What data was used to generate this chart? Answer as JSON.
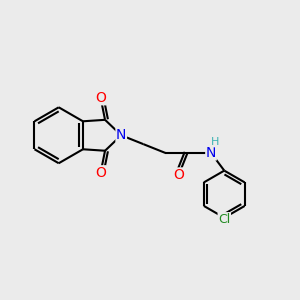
{
  "background_color": "#ebebeb",
  "bond_color": "#000000",
  "bond_width": 1.5,
  "atom_colors": {
    "O": "#ff0000",
    "N": "#0000ee",
    "H": "#3cb3b3",
    "Cl": "#228b22",
    "C": "#000000"
  },
  "font_size_atom": 9,
  "fig_width": 3.0,
  "fig_height": 3.0,
  "dpi": 100
}
